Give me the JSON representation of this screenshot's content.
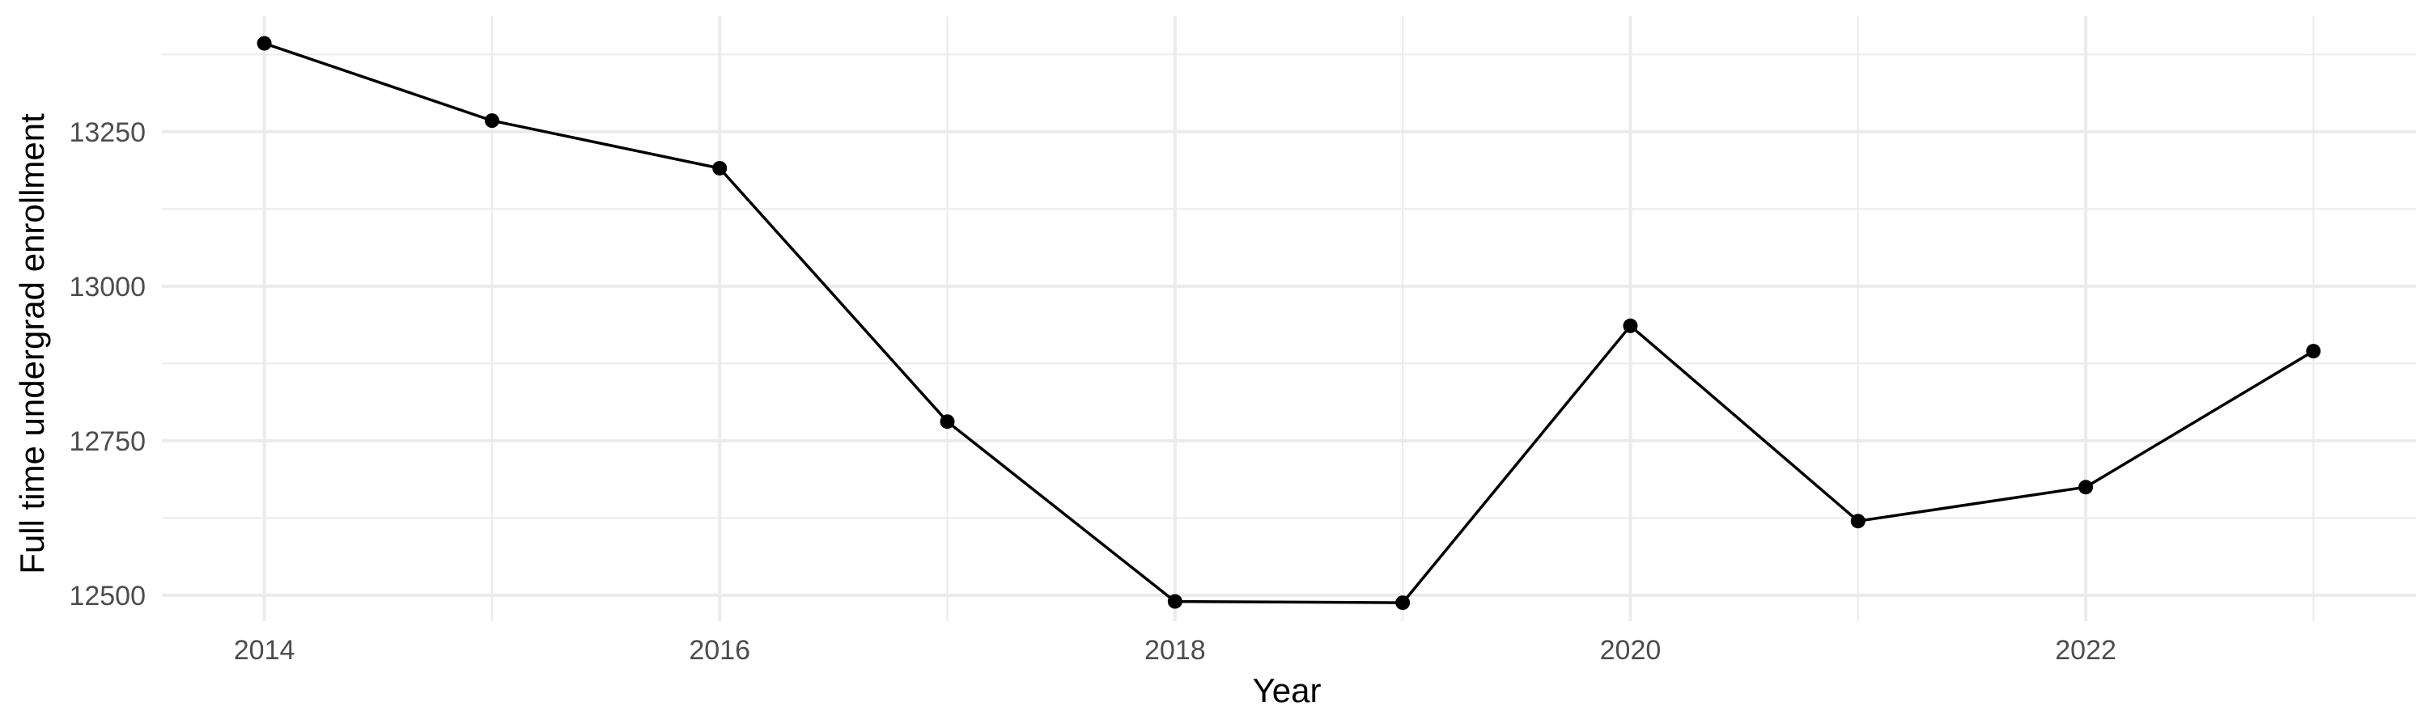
{
  "chart_data": {
    "type": "line",
    "xlabel": "Year",
    "ylabel": "Full time undergrad enrollment",
    "x": [
      2014,
      2015,
      2016,
      2017,
      2018,
      2019,
      2020,
      2021,
      2022,
      2023
    ],
    "y": [
      13393,
      13268,
      13191,
      12781,
      12490,
      12488,
      12936,
      12620,
      12675,
      12895
    ],
    "xlim": [
      2013.55,
      2023.45
    ],
    "ylim": [
      12458,
      13437
    ],
    "x_major_ticks": [
      2014,
      2016,
      2018,
      2020,
      2022
    ],
    "x_minor_ticks": [
      2015,
      2017,
      2019,
      2021,
      2023
    ],
    "y_major_ticks": [
      12500,
      12750,
      13000,
      13250
    ],
    "y_minor_ticks": [
      12625,
      12875,
      13125,
      13375
    ],
    "x_tick_labels": [
      "2014",
      "2016",
      "2018",
      "2020",
      "2022"
    ],
    "y_tick_labels": [
      "12500",
      "12750",
      "13000",
      "13250"
    ],
    "grid": true,
    "line_color": "#000000",
    "point_color": "#000000",
    "grid_color": "#ebebeb"
  }
}
